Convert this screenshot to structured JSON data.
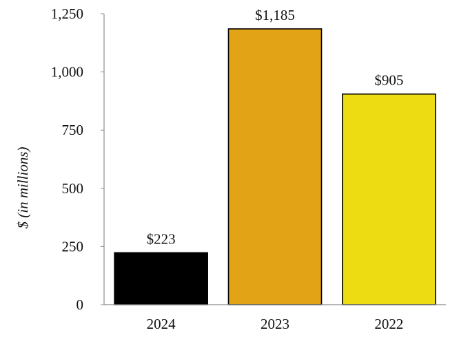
{
  "chart_data": {
    "type": "bar",
    "categories": [
      "2024",
      "2023",
      "2022"
    ],
    "values": [
      223,
      1185,
      905
    ],
    "data_labels": [
      "$223",
      "$1,185",
      "$905"
    ],
    "colors": [
      "#000000",
      "#E2A416",
      "#EEDC13"
    ],
    "ylabel": "$ (in millions)",
    "xlabel": "",
    "ylim": [
      0,
      1250
    ],
    "yticks": [
      0,
      250,
      500,
      750,
      1000,
      1250
    ],
    "ytick_labels": [
      "0",
      "250",
      "500",
      "750",
      "1,000",
      "1,250"
    ],
    "grid": false,
    "legend": "none"
  }
}
